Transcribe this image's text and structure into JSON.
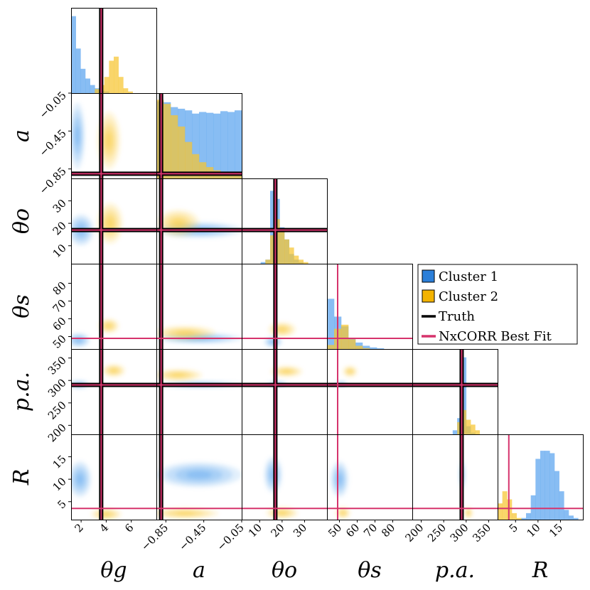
{
  "chart_data": {
    "type": "corner",
    "parameters": [
      "θg",
      "a",
      "θo",
      "θs",
      "p.a.",
      "R"
    ],
    "axes": [
      {
        "name": "θg",
        "range": [
          1.2,
          8.0
        ],
        "ticks": [
          2,
          4,
          6
        ],
        "tick_labels": [
          "2",
          "4",
          "6"
        ]
      },
      {
        "name": "a",
        "range": [
          -0.95,
          -0.05
        ],
        "ticks": [
          -0.85,
          -0.45,
          -0.05
        ],
        "tick_labels": [
          "−0.85",
          "−0.45",
          "−0.05"
        ]
      },
      {
        "name": "θo",
        "range": [
          2,
          40
        ],
        "ticks": [
          10,
          20,
          30
        ],
        "tick_labels": [
          "10",
          "20",
          "30"
        ]
      },
      {
        "name": "θs",
        "range": [
          43,
          91
        ],
        "ticks": [
          50,
          60,
          70,
          80
        ],
        "tick_labels": [
          "50",
          "60",
          "70",
          "80"
        ]
      },
      {
        "name": "p.a.",
        "range": [
          180,
          370
        ],
        "ticks": [
          200,
          250,
          300,
          350
        ],
        "tick_labels": [
          "200",
          "250",
          "300",
          "350"
        ]
      },
      {
        "name": "R",
        "range": [
          1,
          20
        ],
        "ticks": [
          5,
          10,
          15
        ],
        "tick_labels": [
          "5",
          "10",
          "15"
        ]
      }
    ],
    "truth": {
      "θg": 3.6,
      "a": -0.9,
      "θo": 17,
      "p.a.": 290
    },
    "best_fit": {
      "θg": 3.6,
      "a": -0.9,
      "θo": 17,
      "θs": 49,
      "p.a.": 290,
      "R": 3.5
    },
    "histograms": [
      {
        "parameter": "θg",
        "cluster1": [
          0.95,
          0.55,
          0.3,
          0.18,
          0.1,
          0.06,
          0.03,
          0.02,
          0,
          0,
          0,
          0,
          0,
          0,
          0,
          0,
          0,
          0
        ],
        "cluster2": [
          0,
          0,
          0,
          0,
          0,
          0.05,
          0.1,
          0.2,
          0.4,
          0.45,
          0.2,
          0.06,
          0.02,
          0,
          0,
          0,
          0,
          0
        ]
      },
      {
        "parameter": "a",
        "cluster1": [
          0.95,
          0.94,
          0.88,
          0.86,
          0.84,
          0.8,
          0.82,
          0.81,
          0.8,
          0.83,
          0.82,
          0.84
        ],
        "cluster2": [
          0.97,
          0.92,
          0.78,
          0.64,
          0.45,
          0.3,
          0.2,
          0.14,
          0.1,
          0.08,
          0.06,
          0.05
        ]
      },
      {
        "parameter": "θo",
        "cluster1": [
          0,
          0,
          0,
          0,
          0.02,
          0.05,
          0.9,
          0.8,
          0.45,
          0.3,
          0.12,
          0.05,
          0.02,
          0,
          0,
          0,
          0,
          0
        ],
        "cluster2": [
          0,
          0,
          0,
          0,
          0,
          0.05,
          0.35,
          0.55,
          0.42,
          0.3,
          0.2,
          0.1,
          0.05,
          0.02,
          0,
          0,
          0,
          0
        ]
      },
      {
        "parameter": "θs",
        "cluster1": [
          0.62,
          0.4,
          0.28,
          0.14,
          0.08,
          0.04,
          0.02,
          0.01,
          0,
          0,
          0,
          0
        ],
        "cluster2": [
          0.05,
          0.25,
          0.3,
          0.12,
          0.04,
          0.01,
          0,
          0,
          0,
          0,
          0,
          0
        ]
      },
      {
        "parameter": "p.a.",
        "cluster1": [
          0,
          0,
          0,
          0,
          0,
          0,
          0,
          0,
          0,
          0.05,
          0.2,
          0.95,
          0.1,
          0.02,
          0,
          0,
          0,
          0,
          0
        ],
        "cluster2": [
          0,
          0,
          0,
          0,
          0,
          0,
          0,
          0,
          0,
          0,
          0.15,
          0.3,
          0.18,
          0.12,
          0.05,
          0,
          0,
          0,
          0
        ]
      },
      {
        "parameter": "R",
        "cluster1": [
          0,
          0,
          0,
          0,
          0,
          0.02,
          0.08,
          0.3,
          0.75,
          0.85,
          0.85,
          0.82,
          0.6,
          0.35,
          0.12,
          0.05,
          0.02,
          0
        ],
        "cluster2": [
          0.2,
          0.35,
          0.25,
          0.08,
          0.02,
          0,
          0,
          0,
          0,
          0,
          0,
          0,
          0,
          0,
          0,
          0,
          0,
          0
        ]
      }
    ],
    "legend": {
      "location": "upper right",
      "entries": [
        {
          "label": "Cluster 1",
          "kind": "patch",
          "color": "#2b7fd9"
        },
        {
          "label": "Cluster 2",
          "kind": "patch",
          "color": "#f3b300"
        },
        {
          "label": "Truth",
          "kind": "line",
          "color": "#000000"
        },
        {
          "label": "NxCORR Best Fit",
          "kind": "line",
          "color": "#d6336c"
        }
      ]
    },
    "colors": {
      "cluster1_fill": "#5aa4ee",
      "cluster2_fill": "#f7c531",
      "truth": "#000000",
      "best_fit": "#d6336c",
      "frame": "#000000"
    }
  }
}
